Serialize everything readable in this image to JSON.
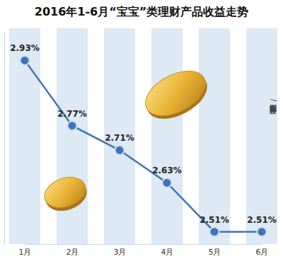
{
  "chart_data": {
    "type": "line",
    "title": "2016年1-6月“宝宝”类理财产品收益走势",
    "categories": [
      "1月",
      "2月",
      "3月",
      "4月",
      "5月",
      "6月"
    ],
    "values": [
      2.93,
      2.77,
      2.71,
      2.63,
      2.51,
      2.51
    ],
    "value_labels": [
      "2.93%",
      "2.77%",
      "2.71%",
      "2.63%",
      "2.51%",
      "2.51%"
    ],
    "color": "#3f74b5",
    "marker": "circle",
    "data_labels": true,
    "tick_labels": "x",
    "ylim": [
      2.48,
      3.0
    ],
    "annotation": "新京报制图/孙嘉路"
  }
}
